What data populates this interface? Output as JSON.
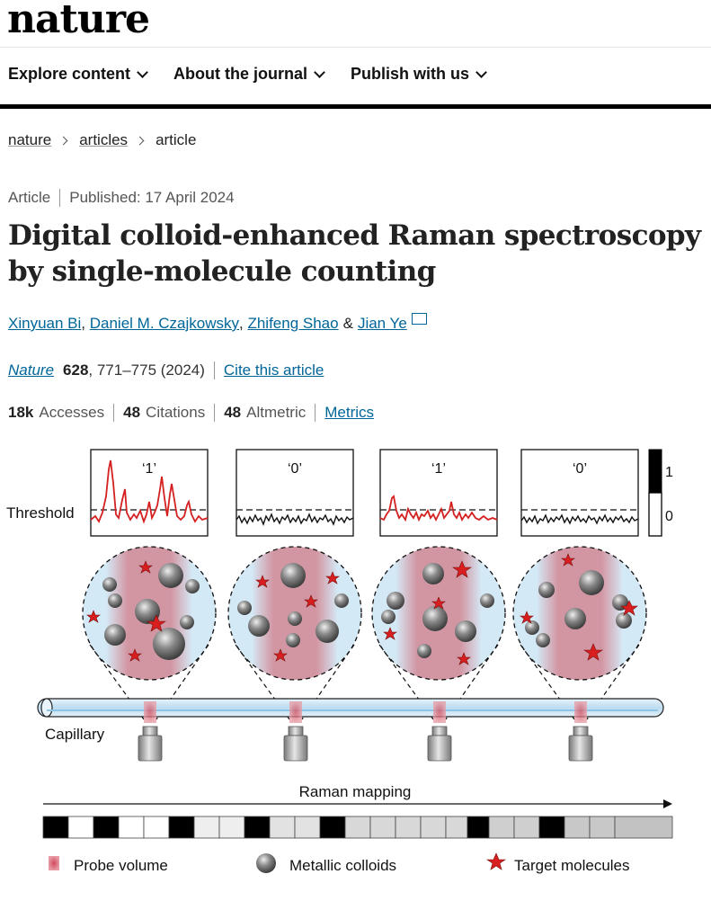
{
  "header": {
    "logo": "nature"
  },
  "nav": [
    {
      "label": "Explore content"
    },
    {
      "label": "About the journal"
    },
    {
      "label": "Publish with us"
    }
  ],
  "breadcrumb": [
    "nature",
    "articles",
    "article"
  ],
  "article": {
    "type": "Article",
    "published": "Published: 17 April 2024",
    "title": "Digital colloid-enhanced Raman spectroscopy by single-molecule counting",
    "authors": [
      "Xinyuan Bi",
      "Daniel M. Czajkowsky",
      "Zhifeng Shao",
      "Jian Ye"
    ],
    "amp": "&",
    "journal": "Nature",
    "volume": "628",
    "pages": ", 771–775 (2024)",
    "cite_label": "Cite this article",
    "accesses_value": "18k",
    "accesses_label": "Accesses",
    "citations_value": "48",
    "citations_label": "Citations",
    "altmetric_value": "48",
    "altmetric_label": "Altmetric",
    "metrics_link": "Metrics"
  },
  "figure": {
    "threshold_label": "Threshold",
    "panel_labels": [
      "‘1’",
      "‘0’",
      "‘1’",
      "‘0’"
    ],
    "scale_top": "1",
    "scale_bottom": "0",
    "capillary_label": "Capillary",
    "raman_label": "Raman mapping",
    "legend": {
      "probe": "Probe volume",
      "colloids": "Metallic colloids",
      "targets": "Target molecules"
    },
    "colors": {
      "signal": "#d42020",
      "probe": "#d27a86",
      "colloid": "#6b6b6b",
      "star": "#d81e1e",
      "bubble": "#cfe6f5"
    }
  }
}
